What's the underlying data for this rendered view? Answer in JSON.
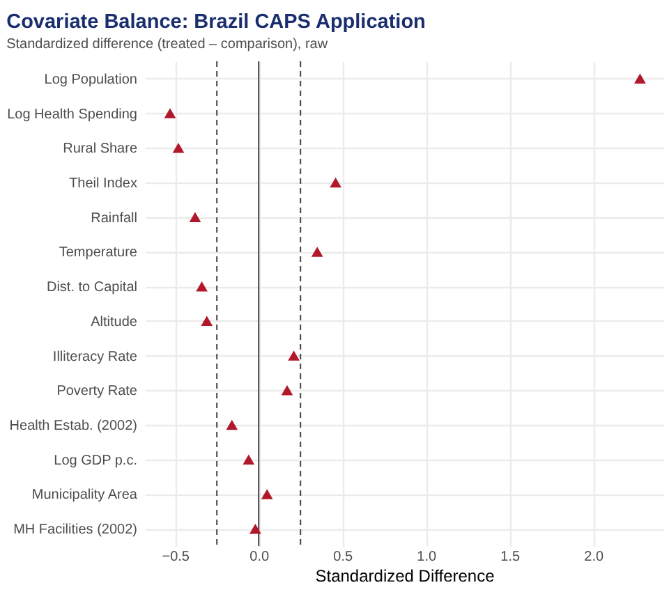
{
  "chart_data": {
    "type": "scatter",
    "title": "Covariate Balance: Brazil CAPS Application",
    "subtitle": "Standardized difference (treated – comparison), raw",
    "xlabel": "Standardized Difference",
    "orientation": "horizontal",
    "categories": [
      "Log Population",
      "Log Health Spending",
      "Rural Share",
      "Theil Index",
      "Rainfall",
      "Temperature",
      "Dist. to Capital",
      "Altitude",
      "Illiteracy Rate",
      "Poverty Rate",
      "Health Estab. (2002)",
      "Log GDP p.c.",
      "Municipality Area",
      "MH Facilities (2002)"
    ],
    "series": [
      {
        "color": "#b2182b",
        "values": [
          2.28,
          -0.53,
          -0.48,
          0.46,
          -0.38,
          0.35,
          -0.34,
          -0.31,
          0.21,
          0.17,
          -0.16,
          -0.06,
          0.05,
          -0.02
        ]
      }
    ],
    "xlim": [
      -0.68,
      2.42
    ],
    "xticks": [
      {
        "value": -0.5,
        "label": "−0.5"
      },
      {
        "value": 0,
        "label": "0.0"
      },
      {
        "value": 0.5,
        "label": "0.5"
      },
      {
        "value": 1,
        "label": "1.0"
      },
      {
        "value": 1.5,
        "label": "1.5"
      },
      {
        "value": 2,
        "label": "2.0"
      }
    ],
    "ref_lines": [
      {
        "axis": "x",
        "value": 0,
        "color": "#444444",
        "line_style": "solid"
      },
      {
        "axis": "x",
        "value": -0.25,
        "color": "#444444",
        "line_style": "dashed"
      },
      {
        "axis": "x",
        "value": 0.25,
        "color": "#444444",
        "line_style": "dashed"
      }
    ],
    "grid": true,
    "marker": "triangle",
    "legend": false
  }
}
